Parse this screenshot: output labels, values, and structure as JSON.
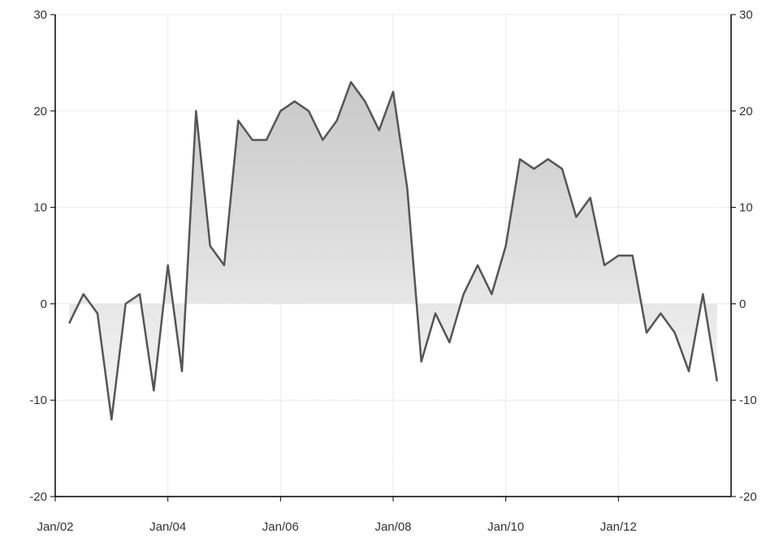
{
  "chart_data": {
    "type": "area",
    "title": "",
    "xlabel": "",
    "ylabel": "",
    "ylim": [
      -20,
      30
    ],
    "yticks": [
      -20,
      -10,
      0,
      10,
      20,
      30
    ],
    "ytick_labels": [
      "-20",
      "-10",
      "0",
      "10",
      "20",
      "30"
    ],
    "xticks": [
      {
        "label": "Jan/02",
        "x": 2002.0
      },
      {
        "label": "Jan/04",
        "x": 2004.0
      },
      {
        "label": "Jan/06",
        "x": 2006.0
      },
      {
        "label": "Jan/08",
        "x": 2008.0
      },
      {
        "label": "Jan/10",
        "x": 2010.0
      },
      {
        "label": "Jan/12",
        "x": 2012.0
      }
    ],
    "xlim": [
      2002.0,
      2014.0
    ],
    "grid": true,
    "dual_y_axis": true,
    "colors": {
      "line": "#555555",
      "fill_top": "#c8c8c8",
      "fill_bottom": "#f7f7f7",
      "grid": "#d9d9d9",
      "axis": "#000000"
    },
    "series": [
      {
        "x": [
          2002.25,
          2002.5,
          2002.75,
          2003.0,
          2003.25,
          2003.5,
          2003.75,
          2004.0,
          2004.25,
          2004.5,
          2004.75,
          2005.0,
          2005.25,
          2005.5,
          2005.75,
          2006.0,
          2006.25,
          2006.5,
          2006.75,
          2007.0,
          2007.25,
          2007.5,
          2007.75,
          2008.0,
          2008.25,
          2008.5,
          2008.75,
          2009.0,
          2009.25,
          2009.5,
          2009.75,
          2010.0,
          2010.25,
          2010.5,
          2010.75,
          2011.0,
          2011.25,
          2011.5,
          2011.75,
          2012.0,
          2012.25,
          2012.5,
          2012.75,
          2013.0,
          2013.25,
          2013.5,
          2013.75
        ],
        "values": [
          -2,
          1,
          -1,
          -12,
          0,
          1,
          -9,
          4,
          -7,
          20,
          6,
          4,
          19,
          17,
          17,
          20,
          21,
          20,
          17,
          19,
          23,
          21,
          18,
          22,
          12,
          -6,
          -1,
          -4,
          1,
          4,
          1,
          6,
          15,
          14,
          15,
          14,
          9,
          11,
          4,
          5,
          5,
          -3,
          -1,
          -3,
          -7,
          1,
          -8
        ]
      }
    ]
  }
}
